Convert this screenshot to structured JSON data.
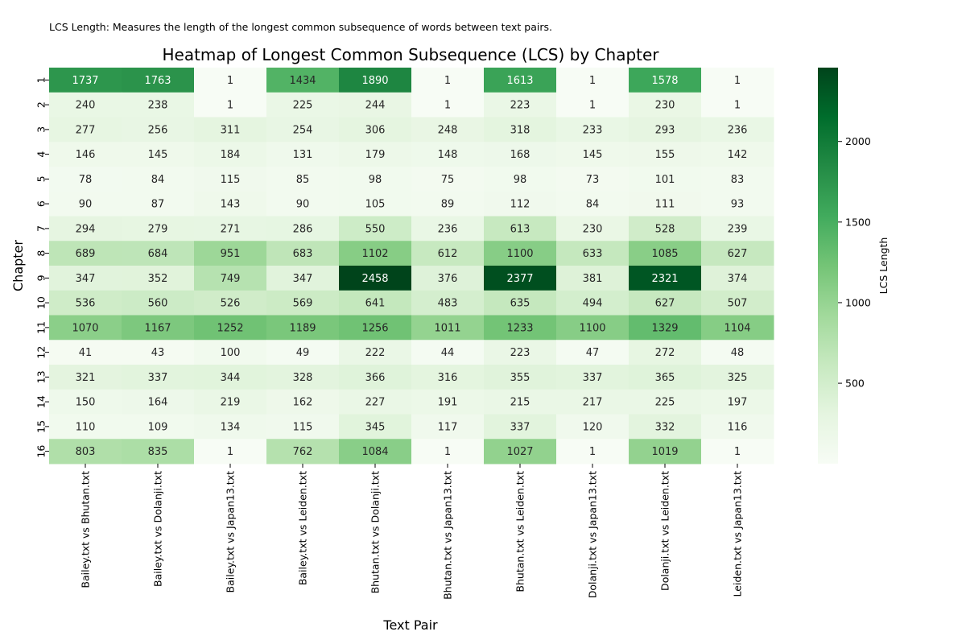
{
  "note": "LCS Length: Measures the length of the longest common subsequence of words between text pairs.",
  "chart_data": {
    "type": "heatmap",
    "title": "Heatmap of Longest Common Subsequence (LCS) by Chapter",
    "xlabel": "Text Pair",
    "ylabel": "Chapter",
    "colorbar_label": "LCS Length",
    "colorbar_ticks": [
      500,
      1000,
      1500,
      2000
    ],
    "color_range": [
      1,
      2458
    ],
    "colormap": [
      "#f7fcf5",
      "#e5f5e0",
      "#c7e9c0",
      "#a1d99b",
      "#74c476",
      "#41ab5d",
      "#238b45",
      "#006d2c",
      "#00441b"
    ],
    "columns": [
      "Bailey.txt vs Bhutan.txt",
      "Bailey.txt vs Dolanji.txt",
      "Bailey.txt vs Japan13.txt",
      "Bailey.txt vs Leiden.txt",
      "Bhutan.txt vs Dolanji.txt",
      "Bhutan.txt vs Japan13.txt",
      "Bhutan.txt vs Leiden.txt",
      "Dolanji.txt vs Japan13.txt",
      "Dolanji.txt vs Leiden.txt",
      "Leiden.txt vs Japan13.txt"
    ],
    "rows": [
      "1",
      "2",
      "3",
      "4",
      "5",
      "6",
      "7",
      "8",
      "9",
      "10",
      "11",
      "12",
      "13",
      "14",
      "15",
      "16"
    ],
    "values": [
      [
        1737,
        1763,
        1,
        1434,
        1890,
        1,
        1613,
        1,
        1578,
        1
      ],
      [
        240,
        238,
        1,
        225,
        244,
        1,
        223,
        1,
        230,
        1
      ],
      [
        277,
        256,
        311,
        254,
        306,
        248,
        318,
        233,
        293,
        236
      ],
      [
        146,
        145,
        184,
        131,
        179,
        148,
        168,
        145,
        155,
        142
      ],
      [
        78,
        84,
        115,
        85,
        98,
        75,
        98,
        73,
        101,
        83
      ],
      [
        90,
        87,
        143,
        90,
        105,
        89,
        112,
        84,
        111,
        93
      ],
      [
        294,
        279,
        271,
        286,
        550,
        236,
        613,
        230,
        528,
        239
      ],
      [
        689,
        684,
        951,
        683,
        1102,
        612,
        1100,
        633,
        1085,
        627
      ],
      [
        347,
        352,
        749,
        347,
        2458,
        376,
        2377,
        381,
        2321,
        374
      ],
      [
        536,
        560,
        526,
        569,
        641,
        483,
        635,
        494,
        627,
        507
      ],
      [
        1070,
        1167,
        1252,
        1189,
        1256,
        1011,
        1233,
        1100,
        1329,
        1104
      ],
      [
        41,
        43,
        100,
        49,
        222,
        44,
        223,
        47,
        272,
        48
      ],
      [
        321,
        337,
        344,
        328,
        366,
        316,
        355,
        337,
        365,
        325
      ],
      [
        150,
        164,
        219,
        162,
        227,
        191,
        215,
        217,
        225,
        197
      ],
      [
        110,
        109,
        134,
        115,
        345,
        117,
        337,
        120,
        332,
        116
      ],
      [
        803,
        835,
        1,
        762,
        1084,
        1,
        1027,
        1,
        1019,
        1
      ]
    ]
  }
}
